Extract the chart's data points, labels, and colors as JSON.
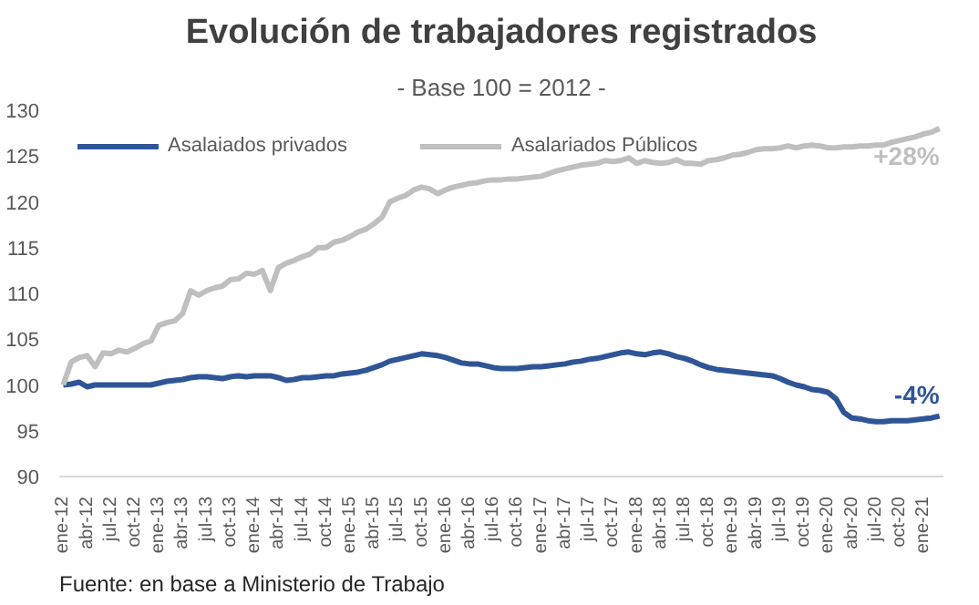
{
  "chart_data": {
    "type": "line",
    "title": "Evolución de trabajadores registrados",
    "subtitle": "- Base 100 = 2012 -",
    "categories": [
      "ene-12",
      null,
      null,
      "abr-12",
      null,
      null,
      "jul-12",
      null,
      null,
      "oct-12",
      null,
      null,
      "ene-13",
      null,
      null,
      "abr-13",
      null,
      null,
      "jul-13",
      null,
      null,
      "oct-13",
      null,
      null,
      "ene-14",
      null,
      null,
      "abr-14",
      null,
      null,
      "jul-14",
      null,
      null,
      "oct-14",
      null,
      null,
      "ene-15",
      null,
      null,
      "abr-15",
      null,
      null,
      "jul-15",
      null,
      null,
      "oct-15",
      null,
      null,
      "ene-16",
      null,
      null,
      "abr-16",
      null,
      null,
      "jul-16",
      null,
      null,
      "oct-16",
      null,
      null,
      "ene-17",
      null,
      null,
      "abr-17",
      null,
      null,
      "jul-17",
      null,
      null,
      "oct-17",
      null,
      null,
      "ene-18",
      null,
      null,
      "abr-18",
      null,
      null,
      "jul-18",
      null,
      null,
      "oct-18",
      null,
      null,
      "ene-19",
      null,
      null,
      "abr-19",
      null,
      null,
      "jul-19",
      null,
      null,
      "oct-19",
      null,
      null,
      "ene-20",
      null,
      null,
      "abr-20",
      null,
      null,
      "jul-20",
      null,
      null,
      "oct-20",
      null,
      null,
      "ene-21",
      null,
      null
    ],
    "series": [
      {
        "name": "Asalaiados privados",
        "color": "#2f5597",
        "values": [
          100,
          100.1,
          100.3,
          99.8,
          100,
          100,
          100,
          100,
          100,
          100,
          100,
          100,
          100.2,
          100.4,
          100.5,
          100.6,
          100.8,
          100.9,
          100.9,
          100.8,
          100.7,
          100.9,
          101,
          100.9,
          101,
          101,
          101,
          100.8,
          100.5,
          100.6,
          100.8,
          100.8,
          100.9,
          101,
          101,
          101.2,
          101.3,
          101.4,
          101.6,
          101.9,
          102.2,
          102.6,
          102.8,
          103,
          103.2,
          103.4,
          103.3,
          103.2,
          103,
          102.7,
          102.4,
          102.3,
          102.3,
          102.1,
          101.9,
          101.8,
          101.8,
          101.8,
          101.9,
          102,
          102,
          102.1,
          102.2,
          102.3,
          102.5,
          102.6,
          102.8,
          102.9,
          103.1,
          103.3,
          103.5,
          103.6,
          103.4,
          103.3,
          103.5,
          103.6,
          103.4,
          103.1,
          102.9,
          102.6,
          102.2,
          101.9,
          101.7,
          101.6,
          101.5,
          101.4,
          101.3,
          101.2,
          101.1,
          101,
          100.7,
          100.3,
          100,
          99.8,
          99.5,
          99.4,
          99.2,
          98.5,
          97,
          96.4,
          96.3,
          96.1,
          96,
          96,
          96.1,
          96.1,
          96.1,
          96.2,
          96.3,
          96.4,
          96.6
        ]
      },
      {
        "name": "Asalariados Públicos",
        "color": "#bfbfbf",
        "values": [
          100,
          102.5,
          103,
          103.2,
          102,
          103.5,
          103.4,
          103.8,
          103.6,
          104,
          104.5,
          104.8,
          106.5,
          106.8,
          107,
          107.8,
          110.3,
          109.8,
          110.3,
          110.6,
          110.8,
          111.5,
          111.6,
          112.2,
          112.1,
          112.5,
          110.3,
          112.8,
          113.3,
          113.6,
          114,
          114.3,
          115,
          115,
          115.6,
          115.8,
          116.2,
          116.7,
          117,
          117.6,
          118.3,
          120,
          120.4,
          120.7,
          121.3,
          121.6,
          121.4,
          120.9,
          121.3,
          121.6,
          121.8,
          122,
          122.1,
          122.3,
          122.4,
          122.4,
          122.5,
          122.5,
          122.6,
          122.7,
          122.8,
          123.1,
          123.4,
          123.6,
          123.8,
          124,
          124.1,
          124.2,
          124.5,
          124.4,
          124.5,
          124.8,
          124.2,
          124.5,
          124.3,
          124.2,
          124.3,
          124.6,
          124.2,
          124.2,
          124.1,
          124.5,
          124.6,
          124.8,
          125.1,
          125.2,
          125.4,
          125.7,
          125.8,
          125.8,
          125.9,
          126.1,
          125.9,
          126.1,
          126.2,
          126.1,
          125.9,
          125.9,
          126,
          126,
          126.1,
          126.1,
          126.2,
          126.2,
          126.5,
          126.7,
          126.9,
          127.1,
          127.4,
          127.6,
          128
        ]
      }
    ],
    "ylim": [
      90,
      130
    ],
    "yticks": [
      90,
      95,
      100,
      105,
      110,
      115,
      120,
      125,
      130
    ],
    "grid": false,
    "legend": "top",
    "marker": "none",
    "line_style": "solid",
    "annotations": [
      {
        "text": "+28%",
        "y": 128
      },
      {
        "text": "-4%",
        "y": 96.6
      },
      "Fuente: en base a Ministerio de Trabajo"
    ]
  }
}
